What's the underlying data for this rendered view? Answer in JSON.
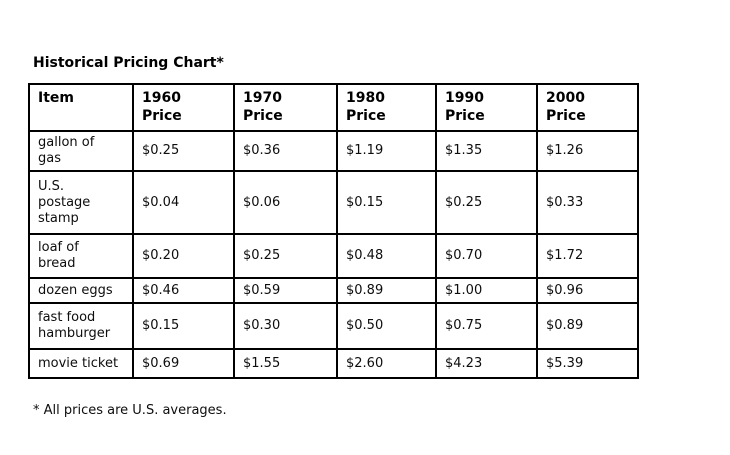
{
  "colors": {
    "background": "#ffffff",
    "border": "#000000",
    "text": "#0d0d0d"
  },
  "title": "Historical Pricing Chart*",
  "table": {
    "columns": [
      "Item",
      "1960\nPrice",
      "1970\nPrice",
      "1980\nPrice",
      "1990\nPrice",
      "2000\nPrice"
    ],
    "rows": [
      {
        "item": "gallon of\ngas",
        "prices": [
          "$0.25",
          "$0.36",
          "$1.19",
          "$1.35",
          "$1.26"
        ]
      },
      {
        "item": "U.S.\npostage\nstamp",
        "prices": [
          "$0.04",
          "$0.06",
          "$0.15",
          "$0.25",
          "$0.33"
        ]
      },
      {
        "item": "loaf of\nbread",
        "prices": [
          "$0.20",
          "$0.25",
          "$0.48",
          "$0.70",
          "$1.72"
        ]
      },
      {
        "item": "dozen eggs",
        "prices": [
          "$0.46",
          "$0.59",
          "$0.89",
          "$1.00",
          "$0.96"
        ]
      },
      {
        "item": "fast food\nhamburger",
        "prices": [
          "$0.15",
          "$0.30",
          "$0.50",
          "$0.75",
          "$0.89"
        ]
      },
      {
        "item": "movie ticket",
        "prices": [
          "$0.69",
          "$1.55",
          "$2.60",
          "$4.23",
          "$5.39"
        ]
      }
    ]
  },
  "footnote": "* All prices are U.S. averages."
}
